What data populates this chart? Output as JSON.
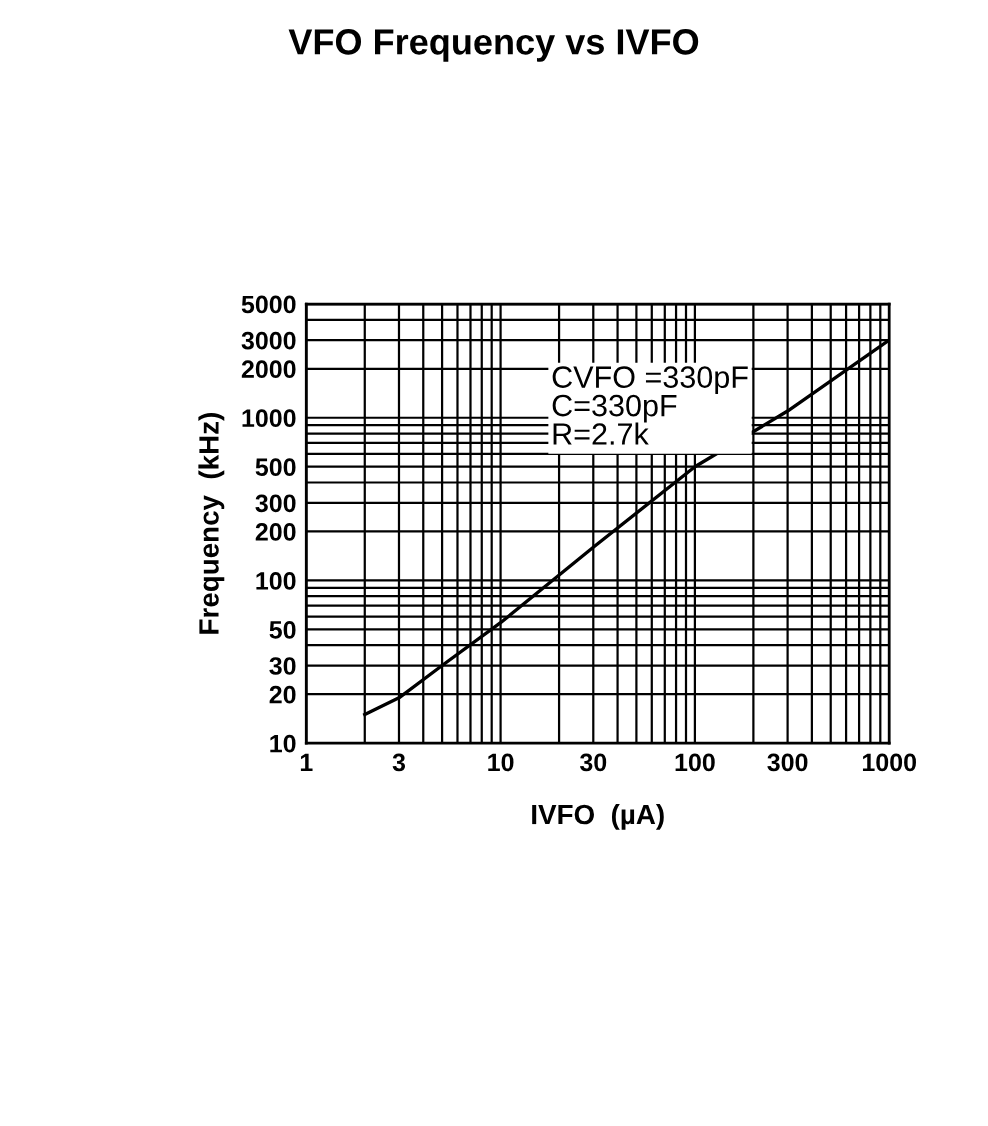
{
  "chart_data": {
    "type": "line",
    "title": "VFO Frequency vs IVFO",
    "xlabel": "IVFO  (µA)",
    "ylabel": "Frequency  (kHz)",
    "x": [
      2,
      3,
      5,
      10,
      30,
      100,
      300,
      1000
    ],
    "series": [
      {
        "color": "#000000",
        "values": [
          15,
          19,
          30,
          55,
          160,
          500,
          1100,
          3000
        ]
      }
    ],
    "log": "xy",
    "xlim": [
      1,
      1000
    ],
    "ylim": [
      10,
      5000
    ],
    "xticks": [
      1,
      3,
      10,
      30,
      100,
      300,
      1000
    ],
    "yticks": [
      10,
      20,
      30,
      50,
      100,
      200,
      300,
      500,
      1000,
      2000,
      3000,
      5000
    ],
    "grid": true,
    "legend": false,
    "marker": "none",
    "line_style": "solid",
    "annotations": [
      "CVFO =330pF",
      "C=330pF",
      "R=2.7k"
    ]
  }
}
